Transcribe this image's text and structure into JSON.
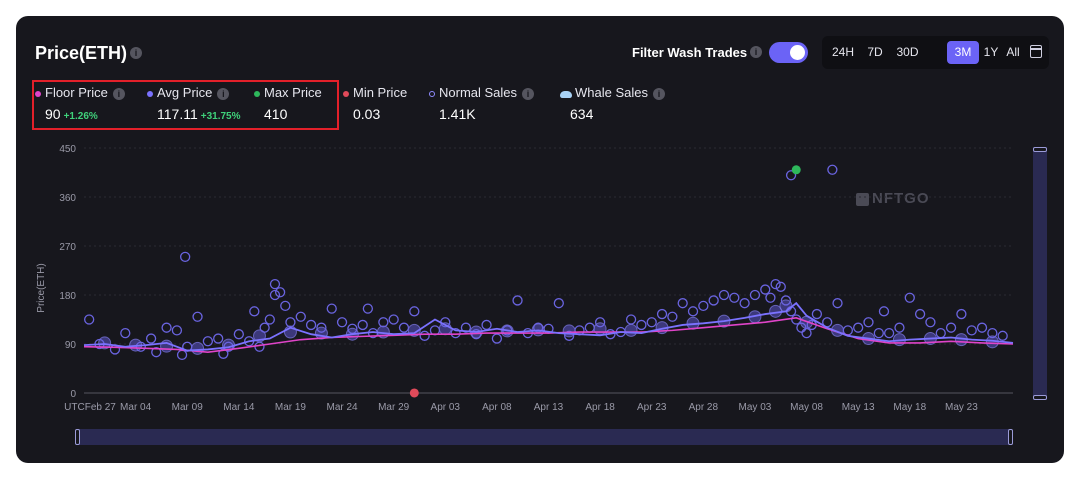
{
  "header": {
    "title": "Price(ETH)",
    "filter_label": "Filter Wash Trades",
    "filter_on": true,
    "ranges": [
      "24H",
      "7D",
      "30D",
      "3M",
      "1Y",
      "All"
    ],
    "active_range": "3M"
  },
  "stats": {
    "floor": {
      "label": "Floor Price",
      "value": "90",
      "change": "+1.26%",
      "color": "#e044c9"
    },
    "avg": {
      "label": "Avg Price",
      "value": "117.11",
      "change": "+31.75%",
      "color": "#7b72ff"
    },
    "max": {
      "label": "Max Price",
      "value": "410",
      "color": "#2eb85c"
    },
    "min": {
      "label": "Min Price",
      "value": "0.03",
      "color": "#e04a5a"
    },
    "normal": {
      "label": "Normal Sales",
      "value": "1.41K",
      "color": "#8f8bff"
    },
    "whale": {
      "label": "Whale Sales",
      "value": "634"
    }
  },
  "watermark": "NFTGO",
  "colors": {
    "accent": "#6b63f6",
    "avg_line": "#7b72ff",
    "floor_line": "#e044c9",
    "normal_point": "#6a64e0",
    "max_point": "#2eb85c",
    "min_point": "#e04a5a"
  },
  "chart_data": {
    "type": "scatter",
    "title": "Price(ETH)",
    "xlabel": "",
    "ylabel": "Price(ETH)",
    "ylim": [
      0,
      450
    ],
    "yticks": [
      "0",
      "90",
      "180",
      "270",
      "360",
      "450"
    ],
    "x_axis_prefix": "UTC",
    "x_tick_labels": [
      "Feb 27",
      "Mar 04",
      "Mar 09",
      "Mar 14",
      "Mar 19",
      "Mar 24",
      "Mar 29",
      "Apr 03",
      "Apr 08",
      "Apr 13",
      "Apr 18",
      "Apr 23",
      "Apr 28",
      "May 03",
      "May 08",
      "May 13",
      "May 18",
      "May 23"
    ],
    "days_range": [
      0,
      90
    ],
    "series": [
      {
        "name": "Avg Price",
        "kind": "line",
        "x": [
          0,
          2,
          4,
          6,
          8,
          10,
          12,
          14,
          16,
          18,
          20,
          22,
          24,
          26,
          28,
          30,
          32,
          34,
          36,
          38,
          40,
          42,
          44,
          46,
          48,
          50,
          52,
          54,
          56,
          58,
          60,
          62,
          64,
          66,
          68,
          69,
          70,
          72,
          74,
          76,
          78,
          80,
          82,
          84,
          86,
          88,
          90
        ],
        "values": [
          88,
          90,
          85,
          88,
          92,
          78,
          80,
          84,
          95,
          100,
          120,
          108,
          102,
          108,
          112,
          108,
          110,
          135,
          115,
          112,
          118,
          112,
          115,
          110,
          108,
          106,
          112,
          110,
          118,
          125,
          128,
          132,
          138,
          145,
          150,
          165,
          142,
          120,
          105,
          100,
          95,
          98,
          100,
          102,
          98,
          96,
          92
        ]
      },
      {
        "name": "Floor Price",
        "kind": "line",
        "x": [
          0,
          3,
          6,
          9,
          12,
          15,
          18,
          21,
          24,
          27,
          30,
          33,
          36,
          39,
          42,
          45,
          48,
          51,
          54,
          57,
          60,
          63,
          66,
          69,
          72,
          75,
          78,
          81,
          84,
          87,
          90
        ],
        "values": [
          85,
          84,
          82,
          80,
          75,
          82,
          90,
          98,
          102,
          104,
          106,
          108,
          108,
          110,
          110,
          110,
          112,
          112,
          112,
          115,
          120,
          125,
          130,
          138,
          118,
          100,
          92,
          92,
          95,
          92,
          90
        ]
      },
      {
        "name": "Normal Sales",
        "kind": "scatter",
        "x": [
          0.5,
          1.5,
          3,
          4,
          5.5,
          6.5,
          7,
          8,
          9,
          9.5,
          10,
          11,
          12,
          13,
          13.5,
          14,
          15,
          16,
          16.5,
          17,
          17.5,
          18,
          18.5,
          19,
          19.5,
          20,
          21,
          22,
          23,
          24,
          25,
          26,
          27,
          28,
          29,
          30,
          31,
          32,
          33,
          34,
          35,
          36,
          37,
          38,
          39,
          40,
          41,
          42,
          43,
          44,
          45,
          46,
          47,
          48,
          49,
          50,
          51,
          52,
          53,
          54,
          55,
          56,
          57,
          58,
          59,
          60,
          61,
          62,
          63,
          64,
          65,
          66,
          66.5,
          67,
          67.5,
          68,
          68.5,
          69,
          69.5,
          70,
          70.5,
          71,
          72,
          73,
          74,
          75,
          76,
          77,
          77.5,
          78,
          79,
          80,
          81,
          82,
          83,
          84,
          85,
          86,
          87,
          88,
          89,
          9.8,
          18.5,
          27.5,
          68.5,
          72.5
        ],
        "values": [
          135,
          90,
          80,
          110,
          85,
          100,
          75,
          120,
          115,
          70,
          85,
          140,
          95,
          100,
          72,
          85,
          108,
          95,
          150,
          85,
          120,
          135,
          180,
          185,
          160,
          130,
          140,
          125,
          120,
          155,
          130,
          118,
          125,
          110,
          130,
          135,
          120,
          150,
          105,
          115,
          130,
          110,
          120,
          108,
          125,
          100,
          115,
          170,
          110,
          120,
          118,
          165,
          105,
          115,
          120,
          130,
          108,
          112,
          135,
          125,
          130,
          145,
          140,
          165,
          150,
          160,
          170,
          180,
          175,
          165,
          180,
          190,
          175,
          200,
          195,
          170,
          150,
          135,
          120,
          110,
          125,
          145,
          130,
          165,
          115,
          120,
          130,
          110,
          150,
          110,
          120,
          175,
          145,
          130,
          110,
          120,
          145,
          115,
          120,
          110,
          105,
          250,
          200,
          155,
          400,
          410
        ]
      },
      {
        "name": "Whale Sales",
        "kind": "scatter",
        "x": [
          2,
          5,
          8,
          11,
          14,
          17,
          20,
          23,
          26,
          29,
          32,
          35,
          38,
          41,
          44,
          47,
          50,
          53,
          56,
          59,
          62,
          65,
          67,
          68,
          70,
          73,
          76,
          79,
          82,
          85,
          88
        ],
        "values": [
          92,
          88,
          86,
          82,
          88,
          105,
          112,
          110,
          108,
          112,
          115,
          118,
          112,
          114,
          116,
          114,
          118,
          115,
          120,
          128,
          132,
          140,
          150,
          160,
          130,
          115,
          100,
          98,
          100,
          98,
          94
        ]
      },
      {
        "name": "Max Price",
        "kind": "point",
        "x": [
          69
        ],
        "values": [
          410
        ]
      },
      {
        "name": "Min Price",
        "kind": "point",
        "x": [
          32
        ],
        "values": [
          0.03
        ]
      }
    ]
  }
}
